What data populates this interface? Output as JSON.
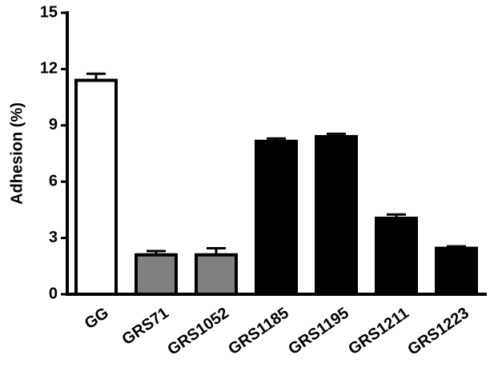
{
  "chart_data": {
    "type": "bar",
    "y_label": "Adhesion (%)",
    "categories": [
      "GG",
      "GRS71",
      "GRS1052",
      "GRS1185",
      "GRS1195",
      "GRS1211",
      "GRS1223"
    ],
    "values": [
      11.4,
      2.1,
      2.1,
      8.15,
      8.4,
      4.05,
      2.45
    ],
    "errors": [
      0.35,
      0.2,
      0.35,
      0.15,
      0.15,
      0.2,
      0.1
    ],
    "colors": [
      "#ffffff",
      "#808080",
      "#808080",
      "#000000",
      "#000000",
      "#000000",
      "#000000"
    ],
    "ylim": [
      0,
      15
    ],
    "yticks": [
      0,
      3,
      6,
      9,
      12,
      15
    ],
    "grid": false
  }
}
